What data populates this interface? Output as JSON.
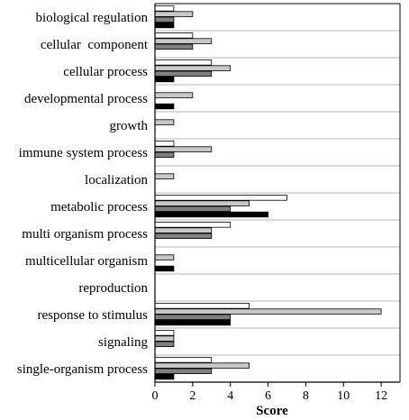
{
  "chart_data": {
    "type": "bar",
    "orientation": "horizontal",
    "categories": [
      "biological regulation",
      "cellular  component",
      "cellular process",
      "developmental process",
      "growth",
      "immune system process",
      "localization",
      "metabolic process",
      "multi organism process",
      "multicellular organism",
      "reproduction",
      "response to stimulus",
      "signaling",
      "single-organism process"
    ],
    "series": [
      {
        "color": "#ffffff",
        "values": [
          1,
          2,
          3,
          0,
          0,
          1,
          0,
          7,
          4,
          0,
          0,
          5,
          1,
          3
        ]
      },
      {
        "color": "#c8c8c8",
        "values": [
          2,
          3,
          4,
          2,
          1,
          3,
          1,
          5,
          3,
          1,
          0,
          12,
          1,
          5
        ]
      },
      {
        "color": "#808080",
        "values": [
          1,
          2,
          3,
          0,
          0,
          1,
          0,
          4,
          3,
          0,
          0,
          4,
          1,
          3
        ]
      },
      {
        "color": "#000000",
        "values": [
          1,
          0,
          1,
          1,
          0,
          0,
          0,
          6,
          0,
          1,
          0,
          4,
          0,
          1
        ]
      }
    ],
    "xlabel": "Score",
    "xlim": [
      0,
      13
    ],
    "xticks": [
      0,
      2,
      4,
      6,
      8,
      10,
      12
    ],
    "grid": "horizontal separators between categories",
    "legend": "none"
  }
}
